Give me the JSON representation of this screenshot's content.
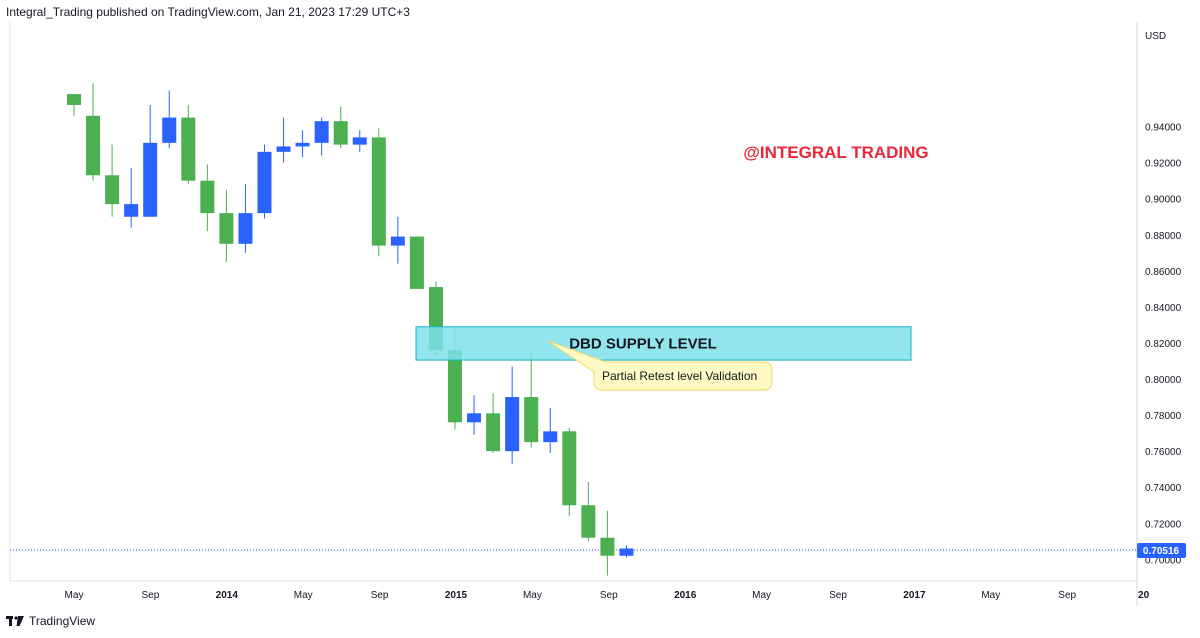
{
  "header": {
    "text": "Integral_Trading published on TradingView.com, Jan 21, 2023 17:29 UTC+3"
  },
  "footer": {
    "brand": "TradingView",
    "logo_icon": "tradingview-logo-icon"
  },
  "overlay": {
    "watermark": "@INTEGRAL TRADING",
    "watermark_color": "#e8273a",
    "zone_label": "DBD SUPPLY LEVEL",
    "zone_color": "#7fe0ea",
    "zone_border": "#1ab4c8",
    "zone_range": [
      0.8105,
      0.829
    ],
    "callout": "Partial Retest level Validation",
    "callout_fill": "#fff9c4",
    "callout_border": "#f2d86b"
  },
  "chart_data": {
    "type": "candlestick",
    "currency": "USD",
    "last_price": "0.70516",
    "last_price_value": 0.70516,
    "ylim": [
      0.688,
      0.998
    ],
    "y_ticks": [
      "0.94000",
      "0.92000",
      "0.90000",
      "0.88000",
      "0.86000",
      "0.84000",
      "0.82000",
      "0.80000",
      "0.78000",
      "0.76000",
      "0.74000",
      "0.72000",
      "0.70000"
    ],
    "x_ticks": [
      "May",
      "Sep",
      "2014",
      "May",
      "Sep",
      "2015",
      "May",
      "Sep",
      "2016",
      "May",
      "Sep",
      "2017",
      "May",
      "Sep",
      "20"
    ],
    "up_color": "#2962ff",
    "down_color": "#4caf50",
    "candles": [
      {
        "o": 0.958,
        "h": 0.958,
        "l": 0.946,
        "c": 0.952
      },
      {
        "o": 0.946,
        "h": 0.964,
        "l": 0.91,
        "c": 0.913
      },
      {
        "o": 0.913,
        "h": 0.93,
        "l": 0.89,
        "c": 0.897
      },
      {
        "o": 0.89,
        "h": 0.917,
        "l": 0.884,
        "c": 0.897
      },
      {
        "o": 0.89,
        "h": 0.952,
        "l": 0.89,
        "c": 0.931
      },
      {
        "o": 0.931,
        "h": 0.96,
        "l": 0.928,
        "c": 0.945
      },
      {
        "o": 0.945,
        "h": 0.952,
        "l": 0.908,
        "c": 0.91
      },
      {
        "o": 0.91,
        "h": 0.919,
        "l": 0.882,
        "c": 0.892
      },
      {
        "o": 0.892,
        "h": 0.905,
        "l": 0.865,
        "c": 0.875
      },
      {
        "o": 0.875,
        "h": 0.908,
        "l": 0.87,
        "c": 0.892
      },
      {
        "o": 0.892,
        "h": 0.93,
        "l": 0.889,
        "c": 0.926
      },
      {
        "o": 0.926,
        "h": 0.945,
        "l": 0.92,
        "c": 0.929
      },
      {
        "o": 0.929,
        "h": 0.938,
        "l": 0.923,
        "c": 0.931
      },
      {
        "o": 0.931,
        "h": 0.945,
        "l": 0.924,
        "c": 0.943
      },
      {
        "o": 0.943,
        "h": 0.951,
        "l": 0.928,
        "c": 0.93
      },
      {
        "o": 0.93,
        "h": 0.938,
        "l": 0.926,
        "c": 0.934
      },
      {
        "o": 0.934,
        "h": 0.939,
        "l": 0.868,
        "c": 0.874
      },
      {
        "o": 0.874,
        "h": 0.89,
        "l": 0.864,
        "c": 0.879
      },
      {
        "o": 0.879,
        "h": 0.879,
        "l": 0.85,
        "c": 0.85
      },
      {
        "o": 0.851,
        "h": 0.854,
        "l": 0.812,
        "c": 0.816
      },
      {
        "o": 0.816,
        "h": 0.828,
        "l": 0.772,
        "c": 0.776
      },
      {
        "o": 0.776,
        "h": 0.791,
        "l": 0.769,
        "c": 0.781
      },
      {
        "o": 0.781,
        "h": 0.792,
        "l": 0.759,
        "c": 0.76
      },
      {
        "o": 0.76,
        "h": 0.807,
        "l": 0.753,
        "c": 0.79
      },
      {
        "o": 0.79,
        "h": 0.815,
        "l": 0.762,
        "c": 0.765
      },
      {
        "o": 0.765,
        "h": 0.784,
        "l": 0.759,
        "c": 0.771
      },
      {
        "o": 0.771,
        "h": 0.773,
        "l": 0.724,
        "c": 0.73
      },
      {
        "o": 0.73,
        "h": 0.743,
        "l": 0.71,
        "c": 0.712
      },
      {
        "o": 0.712,
        "h": 0.727,
        "l": 0.691,
        "c": 0.702
      },
      {
        "o": 0.702,
        "h": 0.708,
        "l": 0.701,
        "c": 0.706
      }
    ]
  }
}
